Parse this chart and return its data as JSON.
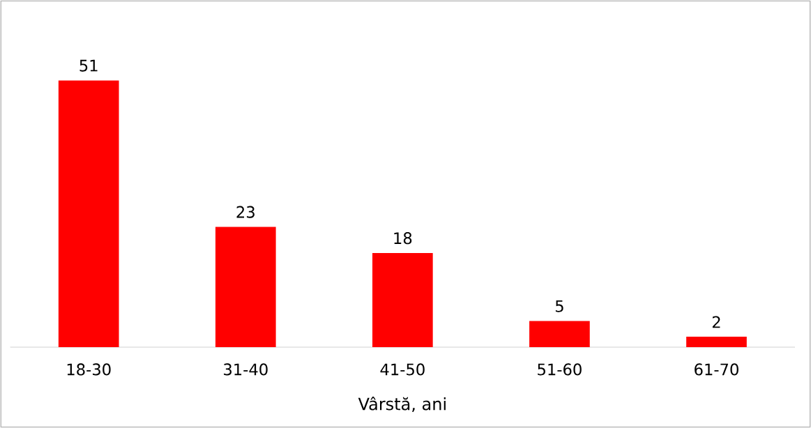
{
  "chart_data": {
    "type": "bar",
    "xlabel": "Vârstă, ani",
    "categories": [
      "18-30",
      "31-40",
      "41-50",
      "51-60",
      "61-70"
    ],
    "values": [
      51,
      23,
      18,
      5,
      2
    ],
    "color": "#ff0000",
    "data_labels": true
  }
}
